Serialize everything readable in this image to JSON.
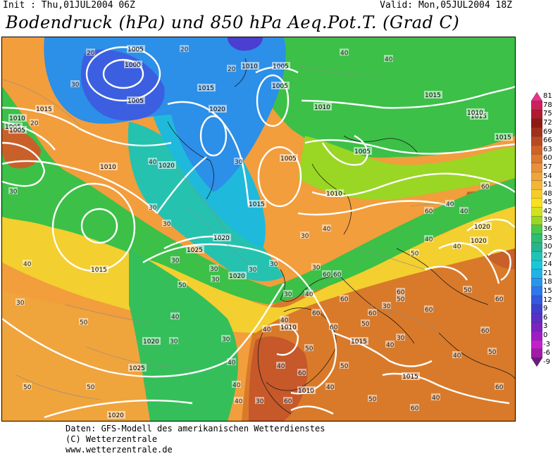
{
  "header": {
    "init": "Init : Thu,01JUL2004 06Z",
    "valid": "Valid: Mon,05JUL2004 18Z",
    "title": "Bodendruck (hPa) und 850 hPa Aeq.Pot.T. (Grad C)"
  },
  "colorbar": {
    "labels": [
      "81",
      "78",
      "75",
      "72",
      "69",
      "66",
      "63",
      "60",
      "57",
      "54",
      "51",
      "48",
      "45",
      "42",
      "39",
      "36",
      "33",
      "30",
      "27",
      "24",
      "21",
      "18",
      "15",
      "12",
      "9",
      "6",
      "3",
      "0",
      "-3",
      "-6",
      "-9"
    ],
    "colors": [
      "#e8328c",
      "#cc1f5c",
      "#b31a2e",
      "#8e1a14",
      "#a3301c",
      "#b84a22",
      "#cf6226",
      "#de7a2c",
      "#e8913a",
      "#f0a53a",
      "#f3b634",
      "#f6cc2a",
      "#f9e11f",
      "#d4e21e",
      "#9ad624",
      "#4cc84a",
      "#2cbf73",
      "#27b38e",
      "#1fc4b6",
      "#18c8d8",
      "#21b2e6",
      "#2a95ec",
      "#2d78ec",
      "#3458e0",
      "#3f3fcf",
      "#5b2fc3",
      "#7a23c0",
      "#9e1cc6",
      "#c41fcf",
      "#a21ba6",
      "#6a1a7c"
    ]
  },
  "isobar_labels": {
    "pressure": [
      "1005",
      "1005",
      "1000",
      "1005",
      "1010",
      "1010",
      "1005",
      "1015",
      "1020",
      "1005",
      "1015",
      "1010",
      "1015",
      "1005",
      "1010",
      "1020",
      "1020",
      "1005",
      "1005",
      "1015",
      "1020",
      "1025",
      "1015",
      "1015",
      "1010",
      "1020",
      "1020",
      "1020",
      "1010",
      "1015",
      "1025",
      "1015",
      "1010",
      "1020",
      "1010",
      "1015"
    ],
    "temperature": [
      "20",
      "20",
      "30",
      "20",
      "20",
      "40",
      "40",
      "30",
      "30",
      "40",
      "30",
      "30",
      "30",
      "40",
      "50",
      "60",
      "40",
      "40",
      "30",
      "30",
      "30",
      "40",
      "40",
      "30",
      "40",
      "30",
      "30",
      "30",
      "30",
      "40",
      "50",
      "30",
      "50",
      "30",
      "40",
      "40",
      "60",
      "30",
      "50",
      "60",
      "40",
      "50",
      "60",
      "50",
      "50",
      "60",
      "60",
      "60",
      "60",
      "40",
      "50",
      "50",
      "60",
      "60",
      "50",
      "40",
      "50",
      "60",
      "30",
      "40",
      "40",
      "60",
      "60",
      "40",
      "60",
      "60",
      "60",
      "50",
      "40",
      "40",
      "20",
      "30",
      "40",
      "50",
      "60"
    ]
  },
  "footer": {
    "line1": "Daten: GFS-Modell des amerikanischen Wetterdienstes",
    "line2": "(C) Wetterzentrale",
    "line3": "www.wetterzentrale.de"
  }
}
